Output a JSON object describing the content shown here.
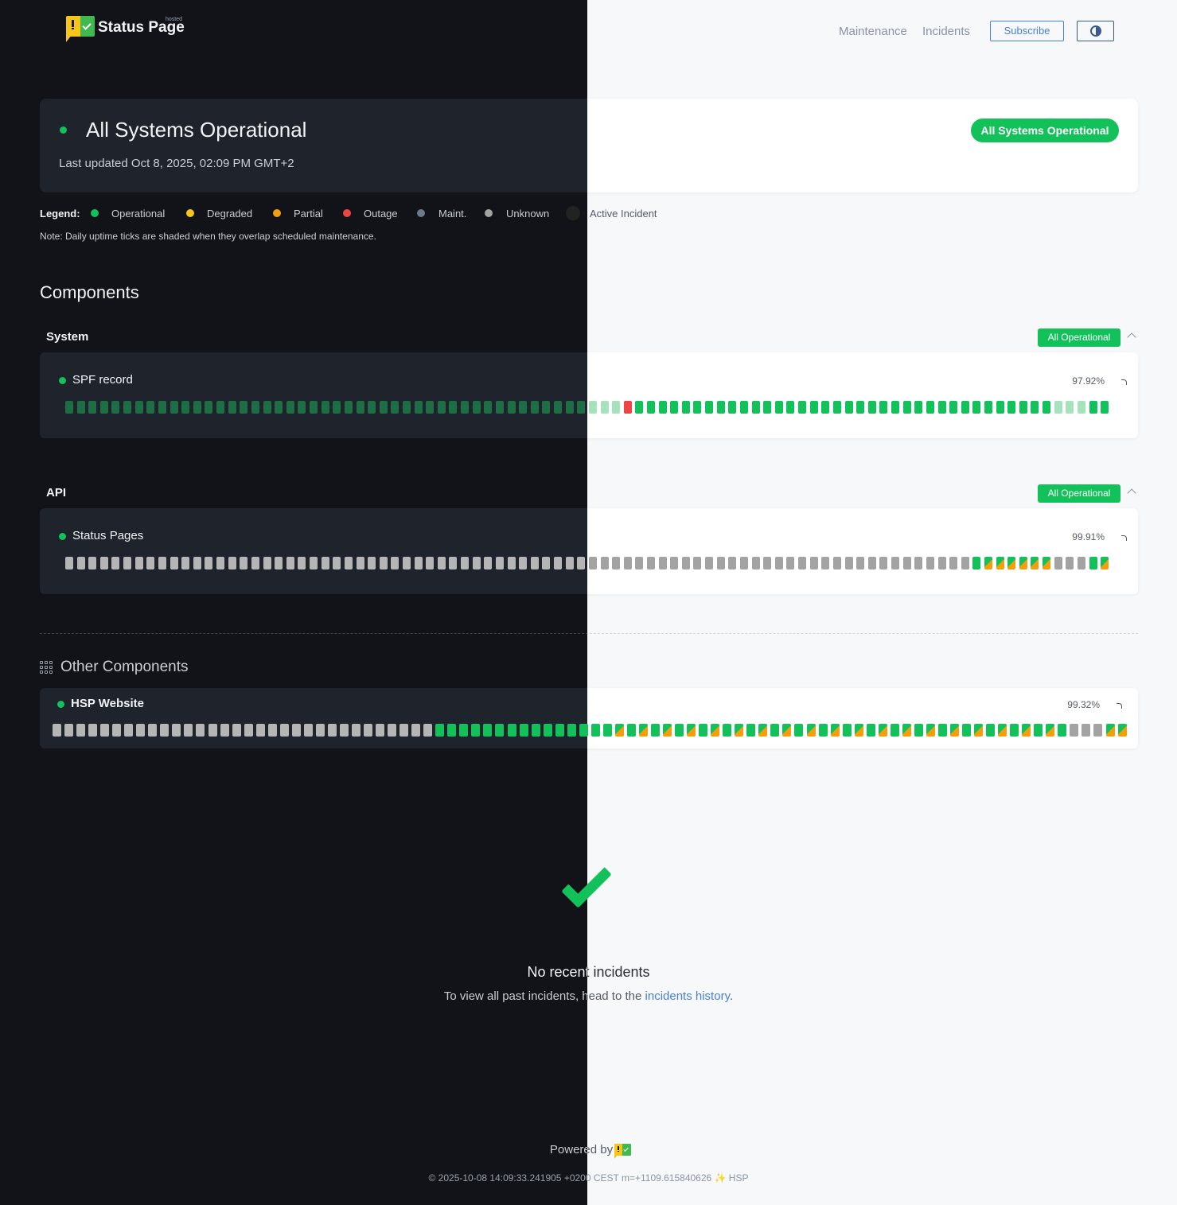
{
  "header": {
    "logo_small": "hosted",
    "logo": "Status Page",
    "nav": [
      "Maintenance",
      "Incidents"
    ],
    "subscribe": "Subscribe"
  },
  "status": {
    "title": "All Systems Operational",
    "updated": "Last updated Oct 8, 2025, 02:09 PM GMT+2",
    "badge": "All Systems Operational"
  },
  "legend": {
    "label": "Legend:",
    "items": [
      "Operational",
      "Degraded",
      "Partial",
      "Outage",
      "Maint.",
      "Unknown",
      "Active Incident"
    ],
    "note": "Note: Daily uptime ticks are shaded when they overlap scheduled maintenance."
  },
  "components": {
    "title": "Components",
    "groups": [
      {
        "name": "System",
        "badge": "All Operational",
        "items": [
          {
            "name": "SPF record",
            "uptime": "97.92%"
          }
        ]
      },
      {
        "name": "API",
        "badge": "All Operational",
        "items": [
          {
            "name": "Status Pages",
            "uptime": "99.91%"
          }
        ]
      }
    ]
  },
  "other": {
    "title": "Other Components",
    "items": [
      {
        "name": "HSP Website",
        "uptime": "99.32%"
      }
    ]
  },
  "incidents": {
    "title": "No recent incidents",
    "text": "To view all past incidents, head to the",
    "link": "incidents history",
    "end": "."
  },
  "footer": {
    "powered": "Powered by",
    "stamp": "© 2025-10-08 14:09:33.241905 +0200 CEST m=+1109.615840626 ✨ HSP"
  }
}
